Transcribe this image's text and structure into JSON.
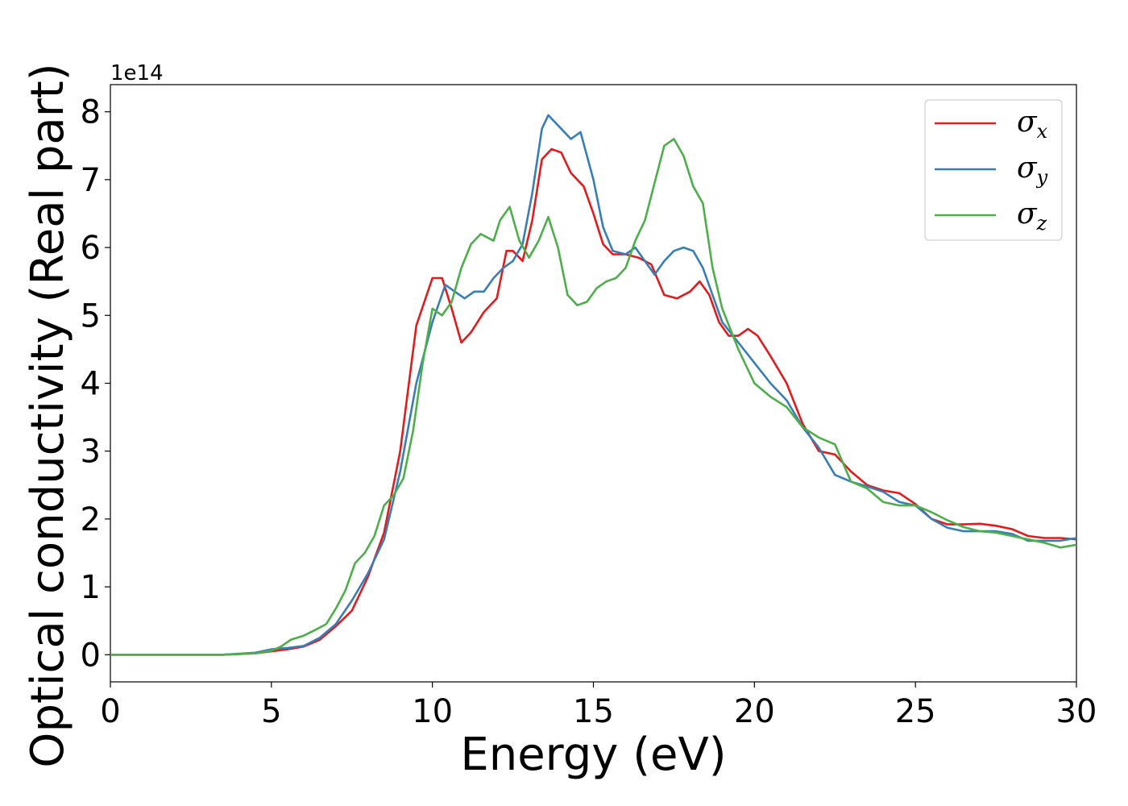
{
  "chart_data": {
    "type": "line",
    "title": "",
    "xlabel": "Energy (eV)",
    "ylabel": "Optical conductivity (Real part)",
    "y_offset_text": "1e14",
    "xlim": [
      0,
      30
    ],
    "ylim": [
      -0.4,
      8.4
    ],
    "y_scale_factor": 100000000000000.0,
    "xticks": [
      0,
      5,
      10,
      15,
      20,
      25,
      30
    ],
    "yticks": [
      0,
      1,
      2,
      3,
      4,
      5,
      6,
      7,
      8
    ],
    "xtick_labels": [
      "0",
      "5",
      "10",
      "15",
      "20",
      "25",
      "30"
    ],
    "ytick_labels": [
      "0",
      "1",
      "2",
      "3",
      "4",
      "5",
      "6",
      "7",
      "8"
    ],
    "grid": false,
    "legend_position": "top-right",
    "series": [
      {
        "name": "σx",
        "symbol": "σ",
        "subscript": "x",
        "color": "#e41a1c",
        "x": [
          0,
          3.5,
          4.5,
          5.0,
          5.5,
          6.0,
          6.5,
          7.0,
          7.5,
          8.0,
          8.5,
          9.0,
          9.5,
          10.0,
          10.3,
          10.6,
          10.9,
          11.2,
          11.6,
          12.0,
          12.3,
          12.5,
          12.8,
          13.1,
          13.4,
          13.7,
          14.0,
          14.3,
          14.7,
          15.0,
          15.3,
          15.6,
          16.0,
          16.4,
          16.8,
          17.2,
          17.6,
          18.0,
          18.3,
          18.6,
          18.9,
          19.2,
          19.5,
          19.8,
          20.1,
          20.5,
          21.0,
          21.5,
          22.0,
          22.5,
          23.0,
          23.5,
          24.0,
          24.5,
          25.0,
          25.5,
          26.0,
          26.5,
          27.0,
          27.5,
          28.0,
          28.5,
          29.0,
          29.5,
          30.0
        ],
        "y": [
          0,
          0,
          0.02,
          0.05,
          0.08,
          0.12,
          0.22,
          0.42,
          0.65,
          1.15,
          1.8,
          3.0,
          4.85,
          5.55,
          5.55,
          5.1,
          4.6,
          4.75,
          5.05,
          5.25,
          5.95,
          5.95,
          5.8,
          6.4,
          7.3,
          7.45,
          7.4,
          7.1,
          6.9,
          6.5,
          6.05,
          5.9,
          5.9,
          5.85,
          5.75,
          5.3,
          5.25,
          5.35,
          5.5,
          5.3,
          4.9,
          4.7,
          4.7,
          4.8,
          4.7,
          4.4,
          4.0,
          3.4,
          3.0,
          2.95,
          2.7,
          2.5,
          2.42,
          2.38,
          2.22,
          2.0,
          1.92,
          1.92,
          1.93,
          1.9,
          1.85,
          1.75,
          1.72,
          1.72,
          1.7
        ]
      },
      {
        "name": "σy",
        "symbol": "σ",
        "subscript": "y",
        "color": "#377eb8",
        "x": [
          0,
          3.5,
          4.5,
          5.0,
          5.5,
          6.0,
          6.5,
          7.0,
          7.5,
          8.0,
          8.5,
          9.0,
          9.5,
          10.0,
          10.4,
          10.7,
          11.0,
          11.3,
          11.6,
          11.9,
          12.2,
          12.5,
          12.8,
          13.1,
          13.4,
          13.6,
          13.8,
          14.0,
          14.3,
          14.6,
          15.0,
          15.3,
          15.6,
          16.0,
          16.3,
          16.6,
          16.9,
          17.2,
          17.5,
          17.8,
          18.1,
          18.4,
          18.7,
          19.0,
          19.5,
          20.0,
          20.5,
          21.0,
          21.5,
          22.0,
          22.5,
          23.0,
          23.5,
          24.0,
          24.5,
          25.0,
          25.5,
          26.0,
          26.5,
          27.0,
          27.5,
          28.0,
          28.5,
          29.0,
          29.5,
          30.0
        ],
        "y": [
          0,
          0,
          0.03,
          0.08,
          0.1,
          0.13,
          0.25,
          0.45,
          0.8,
          1.2,
          1.7,
          2.7,
          4.0,
          4.9,
          5.45,
          5.35,
          5.25,
          5.35,
          5.35,
          5.55,
          5.7,
          5.8,
          6.05,
          6.8,
          7.75,
          7.95,
          7.85,
          7.75,
          7.6,
          7.7,
          7.0,
          6.3,
          5.95,
          5.9,
          6.0,
          5.8,
          5.6,
          5.8,
          5.95,
          6.0,
          5.95,
          5.7,
          5.3,
          4.9,
          4.6,
          4.3,
          4.0,
          3.75,
          3.35,
          3.05,
          2.65,
          2.55,
          2.48,
          2.4,
          2.25,
          2.2,
          2.0,
          1.87,
          1.82,
          1.82,
          1.82,
          1.78,
          1.68,
          1.68,
          1.68,
          1.72
        ]
      },
      {
        "name": "σz",
        "symbol": "σ",
        "subscript": "z",
        "color": "#4daf4a",
        "x": [
          0,
          3.5,
          4.5,
          5.0,
          5.3,
          5.6,
          6.0,
          6.3,
          6.7,
          7.0,
          7.3,
          7.6,
          7.9,
          8.2,
          8.5,
          8.8,
          9.1,
          9.4,
          9.7,
          10.0,
          10.3,
          10.6,
          10.9,
          11.2,
          11.5,
          11.7,
          11.9,
          12.1,
          12.4,
          12.7,
          13.0,
          13.3,
          13.6,
          13.9,
          14.2,
          14.5,
          14.8,
          15.1,
          15.4,
          15.7,
          16.0,
          16.3,
          16.6,
          16.9,
          17.2,
          17.5,
          17.8,
          18.1,
          18.4,
          18.7,
          19.0,
          19.5,
          20.0,
          20.5,
          21.0,
          21.5,
          22.0,
          22.5,
          23.0,
          23.5,
          24.0,
          24.5,
          25.0,
          25.5,
          26.0,
          26.5,
          27.0,
          27.5,
          28.0,
          28.5,
          29.0,
          29.5,
          30.0
        ],
        "y": [
          0,
          0,
          0.02,
          0.06,
          0.12,
          0.22,
          0.28,
          0.35,
          0.45,
          0.68,
          0.95,
          1.35,
          1.5,
          1.75,
          2.2,
          2.35,
          2.6,
          3.3,
          4.3,
          5.1,
          5.0,
          5.2,
          5.7,
          6.05,
          6.2,
          6.15,
          6.1,
          6.4,
          6.6,
          6.1,
          5.85,
          6.1,
          6.45,
          6.0,
          5.3,
          5.15,
          5.2,
          5.4,
          5.5,
          5.55,
          5.7,
          6.1,
          6.4,
          6.95,
          7.5,
          7.6,
          7.35,
          6.9,
          6.65,
          5.7,
          5.1,
          4.5,
          4.0,
          3.8,
          3.65,
          3.35,
          3.2,
          3.1,
          2.55,
          2.45,
          2.25,
          2.2,
          2.2,
          2.1,
          1.98,
          1.88,
          1.82,
          1.8,
          1.75,
          1.7,
          1.65,
          1.58,
          1.62
        ]
      }
    ]
  }
}
